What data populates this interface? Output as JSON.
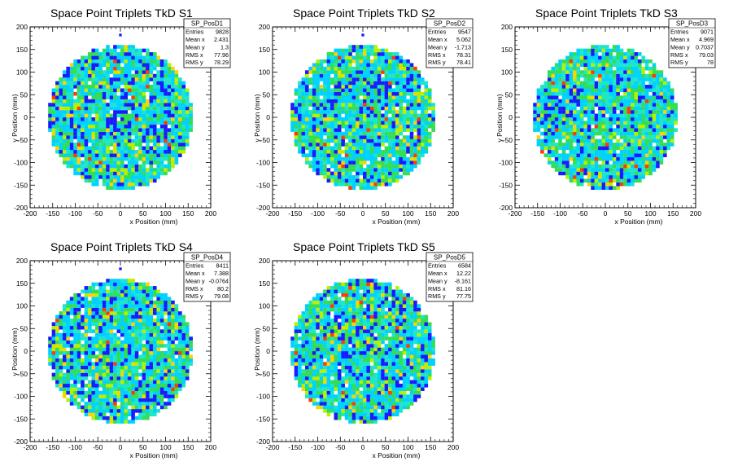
{
  "chart_data": [
    {
      "type": "heatmap",
      "title": "Space Point Triplets TkD S1",
      "xlabel": "x Position (mm)",
      "ylabel": "y Position (mm)",
      "xlim": [
        -200,
        200
      ],
      "ylim": [
        -200,
        200
      ],
      "x_ticks": [
        -200,
        -150,
        -100,
        -50,
        0,
        50,
        100,
        150,
        200
      ],
      "y_ticks": [
        -200,
        -150,
        -100,
        -50,
        0,
        50,
        100,
        150,
        200
      ],
      "region": "disc centred at (0,0), radius ~160 mm",
      "outlier_bins": [
        [
          0,
          182
        ]
      ],
      "stats": {
        "name": "SP_PosD1",
        "rows": [
          [
            "Entries",
            "9828"
          ],
          [
            "Mean x",
            "2.431"
          ],
          [
            "Mean y",
            "1.3"
          ],
          [
            "RMS x",
            "77.96"
          ],
          [
            "RMS y",
            "78.29"
          ]
        ]
      }
    },
    {
      "type": "heatmap",
      "title": "Space Point Triplets TkD S2",
      "xlabel": "x Position (mm)",
      "ylabel": "y Position (mm)",
      "xlim": [
        -200,
        200
      ],
      "ylim": [
        -200,
        200
      ],
      "x_ticks": [
        -200,
        -150,
        -100,
        -50,
        0,
        50,
        100,
        150,
        200
      ],
      "y_ticks": [
        -200,
        -150,
        -100,
        -50,
        0,
        50,
        100,
        150,
        200
      ],
      "region": "disc centred at (0,0), radius ~160 mm",
      "outlier_bins": [
        [
          0,
          182
        ]
      ],
      "stats": {
        "name": "SP_PosD2",
        "rows": [
          [
            "Entries",
            "9547"
          ],
          [
            "Mean x",
            "5.062"
          ],
          [
            "Mean y",
            "-1.713"
          ],
          [
            "RMS x",
            "78.31"
          ],
          [
            "RMS y",
            "78.41"
          ]
        ]
      }
    },
    {
      "type": "heatmap",
      "title": "Space Point Triplets TkD S3",
      "xlabel": "x Position (mm)",
      "ylabel": "y Position (mm)",
      "xlim": [
        -200,
        200
      ],
      "ylim": [
        -200,
        200
      ],
      "x_ticks": [
        -200,
        -150,
        -100,
        -50,
        0,
        50,
        100,
        150,
        200
      ],
      "y_ticks": [
        -200,
        -150,
        -100,
        -50,
        0,
        50,
        100,
        150,
        200
      ],
      "region": "disc centred at (0,0), radius ~160 mm",
      "outlier_bins": [],
      "stats": {
        "name": "SP_PosD3",
        "rows": [
          [
            "Entries",
            "9071"
          ],
          [
            "Mean x",
            "4.969"
          ],
          [
            "Mean y",
            "0.7037"
          ],
          [
            "RMS x",
            "79.03"
          ],
          [
            "RMS y",
            "78"
          ]
        ]
      }
    },
    {
      "type": "heatmap",
      "title": "Space Point Triplets TkD S4",
      "xlabel": "x Position (mm)",
      "ylabel": "y Position (mm)",
      "xlim": [
        -200,
        200
      ],
      "ylim": [
        -200,
        200
      ],
      "x_ticks": [
        -200,
        -150,
        -100,
        -50,
        0,
        50,
        100,
        150,
        200
      ],
      "y_ticks": [
        -200,
        -150,
        -100,
        -50,
        0,
        50,
        100,
        150,
        200
      ],
      "region": "disc centred at (0,0), radius ~160 mm",
      "outlier_bins": [
        [
          0,
          182
        ]
      ],
      "stats": {
        "name": "SP_PosD4",
        "rows": [
          [
            "Entries",
            "8411"
          ],
          [
            "Mean x",
            "7.388"
          ],
          [
            "Mean y",
            "-0.0764"
          ],
          [
            "RMS x",
            "80.2"
          ],
          [
            "RMS y",
            "79.08"
          ]
        ]
      }
    },
    {
      "type": "heatmap",
      "title": "Space Point Triplets TkD S5",
      "xlabel": "x Position (mm)",
      "ylabel": "y Position (mm)",
      "xlim": [
        -200,
        200
      ],
      "ylim": [
        -200,
        200
      ],
      "x_ticks": [
        -200,
        -150,
        -100,
        -50,
        0,
        50,
        100,
        150,
        200
      ],
      "y_ticks": [
        -200,
        -150,
        -100,
        -50,
        0,
        50,
        100,
        150,
        200
      ],
      "region": "disc centred at (0,0), radius ~160 mm",
      "outlier_bins": [],
      "stats": {
        "name": "SP_PosD5",
        "rows": [
          [
            "Entries",
            "6584"
          ],
          [
            "Mean x",
            "12.22"
          ],
          [
            "Mean y",
            "-8.161"
          ],
          [
            "RMS x",
            "81.16"
          ],
          [
            "RMS y",
            "77.75"
          ]
        ]
      }
    }
  ],
  "palette": [
    "#1a1aff",
    "#00d2ff",
    "#20e6c8",
    "#33dd55",
    "#b8f000",
    "#ffd200",
    "#ff3b00"
  ]
}
